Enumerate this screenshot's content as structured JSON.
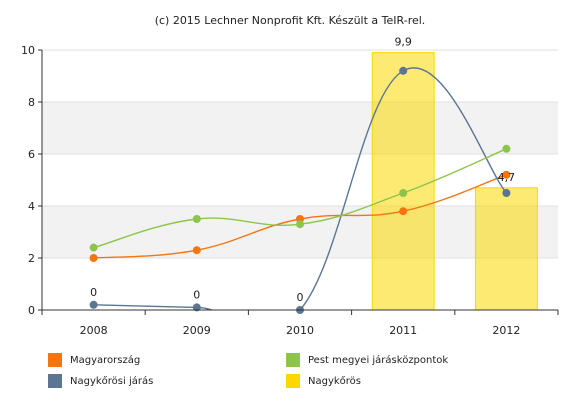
{
  "chart_data": {
    "type": "bar",
    "title": "(c) 2015 Lechner Nonprofit Kft. Készült a TeIR-rel.",
    "categories": [
      "2008",
      "2009",
      "2010",
      "2011",
      "2012"
    ],
    "ylim": [
      0,
      10
    ],
    "yticks": [
      0,
      2,
      4,
      6,
      8,
      10
    ],
    "grid": true,
    "legend_position": "bottom",
    "series": [
      {
        "name": "Magyarország",
        "kind": "line",
        "color": "#f7740e",
        "values": [
          2.0,
          2.3,
          3.5,
          3.8,
          5.2
        ]
      },
      {
        "name": "Nagykőrösi járás",
        "kind": "line",
        "color": "#5b7593",
        "values": [
          0.2,
          0.1,
          0.0,
          9.2,
          4.5
        ],
        "labels": [
          "0",
          "0",
          "0",
          "",
          ""
        ]
      },
      {
        "name": "Pest megyei járásközpontok",
        "kind": "line",
        "color": "#8dc44c",
        "values": [
          2.4,
          3.5,
          3.3,
          4.5,
          6.2
        ]
      },
      {
        "name": "Nagykőrös",
        "kind": "bar",
        "color": "#fcd800",
        "values": [
          null,
          null,
          null,
          9.9,
          4.7
        ],
        "labels": [
          "",
          "",
          "",
          "9,9",
          "4,7"
        ]
      }
    ]
  }
}
